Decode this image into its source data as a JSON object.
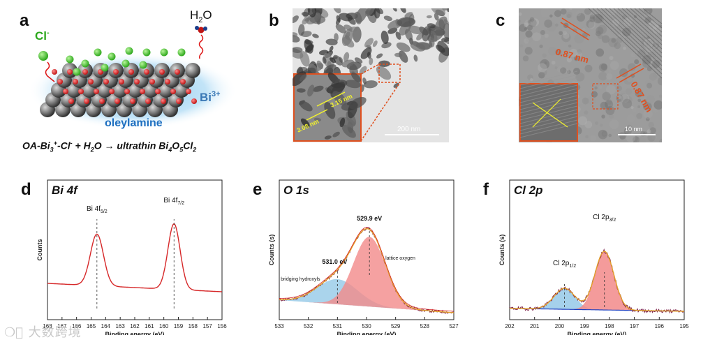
{
  "panels": {
    "a": {
      "label": "a",
      "ion_cl": "Cl",
      "ion_cl_sup": "-",
      "water": "H",
      "water_sub": "2",
      "water_o": "O",
      "bi": "Bi",
      "bi_sup": "3+",
      "oleylamine": "oleylamine",
      "equation": "OA-Bi3+-Cl- + H2O → ultrathin Bi4O5Cl2"
    },
    "b": {
      "label": "b",
      "scale_bar": "200 nm",
      "inset_d1": "3.15 nm",
      "inset_d2": "3.08 nm"
    },
    "c": {
      "label": "c",
      "d_spacing_1": "0.87 nm",
      "d_spacing_2": "0.87 nm",
      "scale_bar": "10 nm"
    },
    "d": {
      "label": "d"
    },
    "e": {
      "label": "e"
    },
    "f": {
      "label": "f"
    }
  },
  "chart_data": [
    {
      "type": "line",
      "panel": "d",
      "title": "Bi 4f",
      "xlabel": "Binding energy (eV)",
      "ylabel": "Counts",
      "xlim": [
        168,
        156
      ],
      "xticks": [
        168,
        167,
        166,
        165,
        164,
        163,
        162,
        161,
        160,
        159,
        158,
        157,
        156
      ],
      "peaks": [
        {
          "label": "Bi 4f",
          "sub": "5/2",
          "center": 164.6
        },
        {
          "label": "Bi 4f",
          "sub": "7/2",
          "center": 159.3
        }
      ],
      "colors": {
        "data": "#d62728"
      }
    },
    {
      "type": "line",
      "panel": "e",
      "title": "O 1s",
      "xlabel": "Binding energy (eV)",
      "ylabel": "Counts (s)",
      "xlim": [
        533,
        527
      ],
      "xticks": [
        533,
        532,
        531,
        530,
        529,
        528,
        527
      ],
      "peaks": [
        {
          "label": "531.0 eV",
          "center": 531.0,
          "component": "bridging hydroxyls",
          "color": "#8ec6e6"
        },
        {
          "label": "529.9 eV",
          "center": 529.9,
          "component": "lattice oxygen",
          "color": "#f28a8a"
        }
      ],
      "colors": {
        "data": "#7b1f4a",
        "fit": "#e4a12a",
        "envelope": "#d62728"
      }
    },
    {
      "type": "line",
      "panel": "f",
      "title": "Cl 2p",
      "xlabel": "Binding energy (eV)",
      "ylabel": "Counts (s)",
      "xlim": [
        202,
        195
      ],
      "xticks": [
        202,
        201,
        200,
        199,
        198,
        197,
        196,
        195
      ],
      "peaks": [
        {
          "label": "Cl 2p",
          "sub": "1/2",
          "center": 199.8,
          "color": "#8ec6e6"
        },
        {
          "label": "Cl 2p",
          "sub": "3/2",
          "center": 198.2,
          "color": "#f28a8a"
        }
      ],
      "colors": {
        "data": "#7b1f4a",
        "fit": "#e4a12a",
        "envelope": "#d62728",
        "baseline": "#1f3fbf"
      }
    }
  ],
  "watermark": "大数跨境"
}
